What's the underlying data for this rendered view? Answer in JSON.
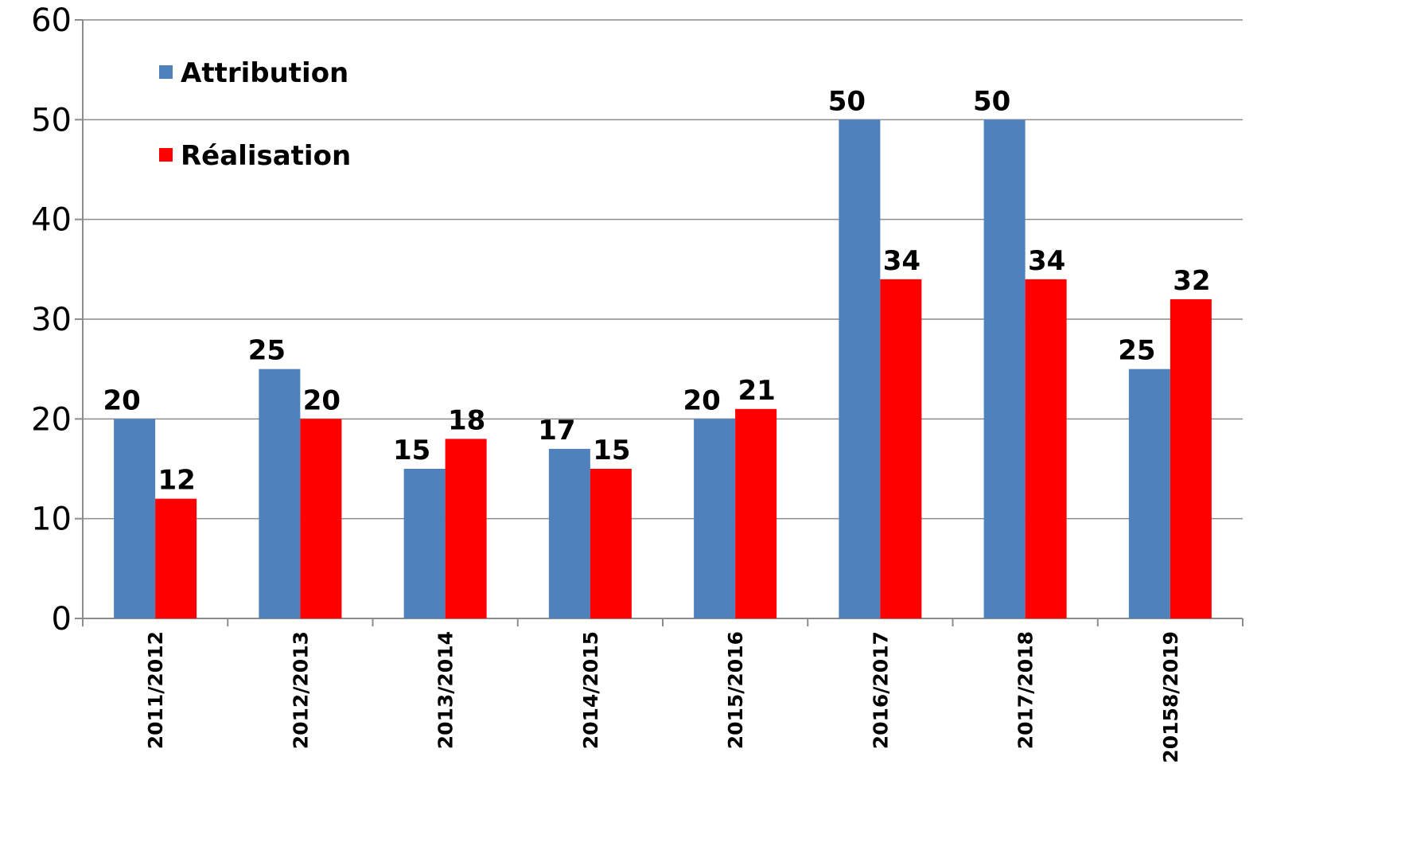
{
  "chart_data": {
    "type": "bar",
    "title": "",
    "xlabel": "",
    "ylabel": "",
    "categories": [
      "2011/2012",
      "2012/2013",
      "2013/2014",
      "2014/2015",
      "2015/2016",
      "2016/2017",
      "2017/2018",
      "20158/2019"
    ],
    "series": [
      {
        "name": "Attribution",
        "color": "#4f81bd",
        "values": [
          20,
          25,
          15,
          17,
          20,
          50,
          50,
          25
        ]
      },
      {
        "name": "Réalisation",
        "color": "#ff0000",
        "values": [
          12,
          20,
          18,
          15,
          21,
          34,
          34,
          32
        ]
      }
    ],
    "ylim": [
      0,
      60
    ],
    "yticks": [
      0,
      10,
      20,
      30,
      40,
      50,
      60
    ],
    "grid": true,
    "legend_position": "top-left",
    "data_labels": true
  }
}
